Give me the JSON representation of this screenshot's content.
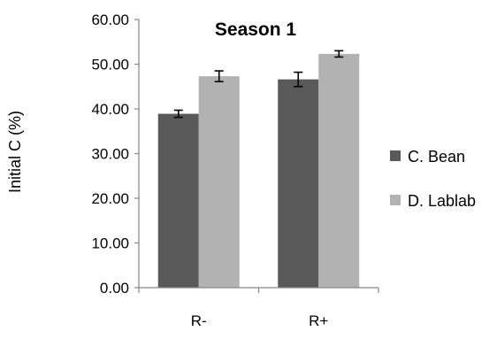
{
  "chart_data": {
    "type": "bar",
    "title": "Season 1",
    "xlabel": "",
    "ylabel": "Initial C (%)",
    "categories": [
      "R-",
      "R+"
    ],
    "series": [
      {
        "name": "C. Bean",
        "values": [
          38.9,
          46.6
        ],
        "errors": [
          0.8,
          1.6
        ],
        "color": "#595959"
      },
      {
        "name": "D. Lablab",
        "values": [
          47.3,
          52.3
        ],
        "errors": [
          1.2,
          0.7
        ],
        "color": "#b2b2b2"
      }
    ],
    "ylim": [
      0,
      60
    ],
    "yticks": [
      "0.00",
      "10.00",
      "20.00",
      "30.00",
      "40.00",
      "50.00",
      "60.00"
    ],
    "grid": false,
    "legend": "right"
  }
}
